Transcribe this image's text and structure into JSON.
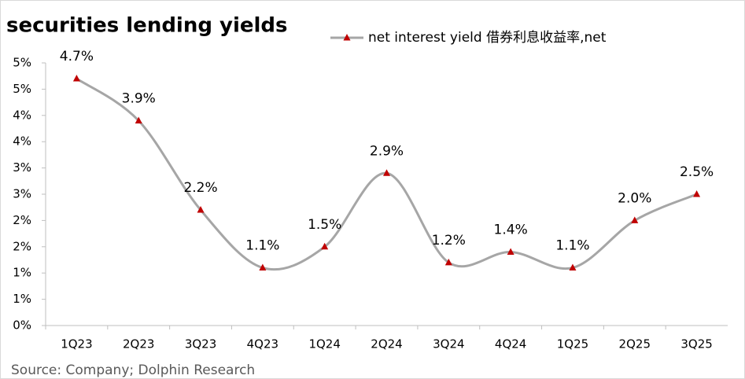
{
  "chart_data": {
    "type": "line",
    "title": "securities lending yields",
    "source": "Source: Company; Dolphin Research",
    "categories": [
      "1Q23",
      "2Q23",
      "3Q23",
      "4Q23",
      "1Q24",
      "2Q24",
      "3Q24",
      "4Q24",
      "1Q25",
      "2Q25",
      "3Q25"
    ],
    "series": [
      {
        "name": "net interest yield 借券利息收益率,net",
        "color": "#a6a6a6",
        "marker_color": "#c00000",
        "values": [
          4.7,
          3.9,
          2.2,
          1.1,
          1.5,
          2.9,
          1.2,
          1.4,
          1.1,
          2.0,
          2.5
        ],
        "value_labels": [
          "4.7%",
          "3.9%",
          "2.2%",
          "1.1%",
          "1.5%",
          "2.9%",
          "1.2%",
          "1.4%",
          "1.1%",
          "2.0%",
          "2.5%"
        ]
      }
    ],
    "ylim": [
      0,
      5
    ],
    "yticks": [
      {
        "value": 0,
        "label": "0%"
      },
      {
        "value": 0.5,
        "label": "1%"
      },
      {
        "value": 1,
        "label": "1%"
      },
      {
        "value": 1.5,
        "label": "2%"
      },
      {
        "value": 2,
        "label": "2%"
      },
      {
        "value": 2.5,
        "label": "3%"
      },
      {
        "value": 3,
        "label": "3%"
      },
      {
        "value": 3.5,
        "label": "4%"
      },
      {
        "value": 4,
        "label": "4%"
      },
      {
        "value": 4.5,
        "label": "5%"
      },
      {
        "value": 5,
        "label": "5%"
      }
    ],
    "legend": "top"
  }
}
